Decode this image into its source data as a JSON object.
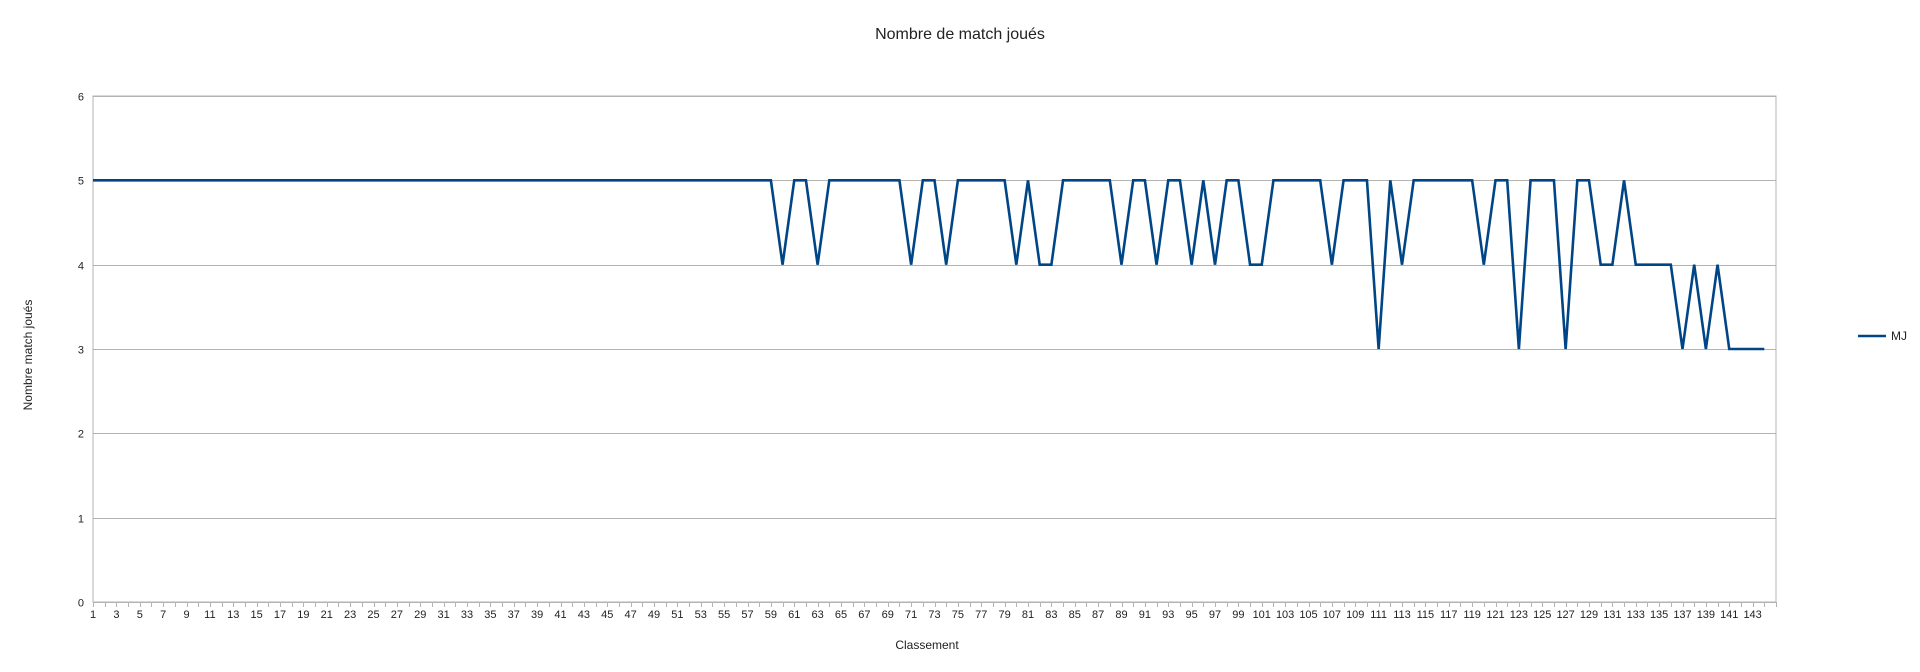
{
  "chart_data": {
    "type": "line",
    "title": "Nombre de match joués",
    "xlabel": "Classement",
    "ylabel": "Nombre match joués",
    "ylim": [
      0,
      6
    ],
    "yticks": [
      0,
      1,
      2,
      3,
      4,
      5,
      6
    ],
    "x": [
      1,
      2,
      3,
      4,
      5,
      6,
      7,
      8,
      9,
      10,
      11,
      12,
      13,
      14,
      15,
      16,
      17,
      18,
      19,
      20,
      21,
      22,
      23,
      24,
      25,
      26,
      27,
      28,
      29,
      30,
      31,
      32,
      33,
      34,
      35,
      36,
      37,
      38,
      39,
      40,
      41,
      42,
      43,
      44,
      45,
      46,
      47,
      48,
      49,
      50,
      51,
      52,
      53,
      54,
      55,
      56,
      57,
      58,
      59,
      60,
      61,
      62,
      63,
      64,
      65,
      66,
      67,
      68,
      69,
      70,
      71,
      72,
      73,
      74,
      75,
      76,
      77,
      78,
      79,
      80,
      81,
      82,
      83,
      84,
      85,
      86,
      87,
      88,
      89,
      90,
      91,
      92,
      93,
      94,
      95,
      96,
      97,
      98,
      99,
      100,
      101,
      102,
      103,
      104,
      105,
      106,
      107,
      108,
      109,
      110,
      111,
      112,
      113,
      114,
      115,
      116,
      117,
      118,
      119,
      120,
      121,
      122,
      123,
      124,
      125,
      126,
      127,
      128,
      129,
      130,
      131,
      132,
      133,
      134,
      135,
      136,
      137,
      138,
      139,
      140,
      141,
      142,
      143,
      144
    ],
    "xtick_labels": [
      "1",
      "3",
      "5",
      "7",
      "9",
      "11",
      "13",
      "15",
      "17",
      "19",
      "21",
      "23",
      "25",
      "27",
      "29",
      "31",
      "33",
      "35",
      "37",
      "39",
      "41",
      "43",
      "45",
      "47",
      "49",
      "51",
      "53",
      "55",
      "57",
      "59",
      "61",
      "63",
      "65",
      "67",
      "69",
      "71",
      "73",
      "75",
      "77",
      "79",
      "81",
      "83",
      "85",
      "87",
      "89",
      "91",
      "93",
      "95",
      "97",
      "99",
      "101",
      "103",
      "105",
      "107",
      "109",
      "111",
      "113",
      "115",
      "117",
      "119",
      "121",
      "123",
      "125",
      "127",
      "129",
      "131",
      "133",
      "135",
      "137",
      "139",
      "141",
      "143"
    ],
    "series": [
      {
        "name": "MJ",
        "color": "#004586",
        "values": [
          5,
          5,
          5,
          5,
          5,
          5,
          5,
          5,
          5,
          5,
          5,
          5,
          5,
          5,
          5,
          5,
          5,
          5,
          5,
          5,
          5,
          5,
          5,
          5,
          5,
          5,
          5,
          5,
          5,
          5,
          5,
          5,
          5,
          5,
          5,
          5,
          5,
          5,
          5,
          5,
          5,
          5,
          5,
          5,
          5,
          5,
          5,
          5,
          5,
          5,
          5,
          5,
          5,
          5,
          5,
          5,
          5,
          5,
          5,
          4,
          5,
          5,
          4,
          5,
          5,
          5,
          5,
          5,
          5,
          5,
          4,
          5,
          5,
          4,
          5,
          5,
          5,
          5,
          5,
          4,
          5,
          4,
          4,
          5,
          5,
          5,
          5,
          5,
          4,
          5,
          5,
          4,
          5,
          5,
          4,
          5,
          4,
          5,
          5,
          4,
          4,
          5,
          5,
          5,
          5,
          5,
          4,
          5,
          5,
          5,
          3,
          5,
          4,
          5,
          5,
          5,
          5,
          5,
          5,
          4,
          5,
          5,
          3,
          5,
          5,
          5,
          3,
          5,
          5,
          4,
          4,
          5,
          4,
          4,
          4,
          4,
          3,
          4,
          3,
          4,
          3,
          3,
          3,
          3
        ]
      }
    ],
    "grid": true,
    "legend": "right"
  }
}
